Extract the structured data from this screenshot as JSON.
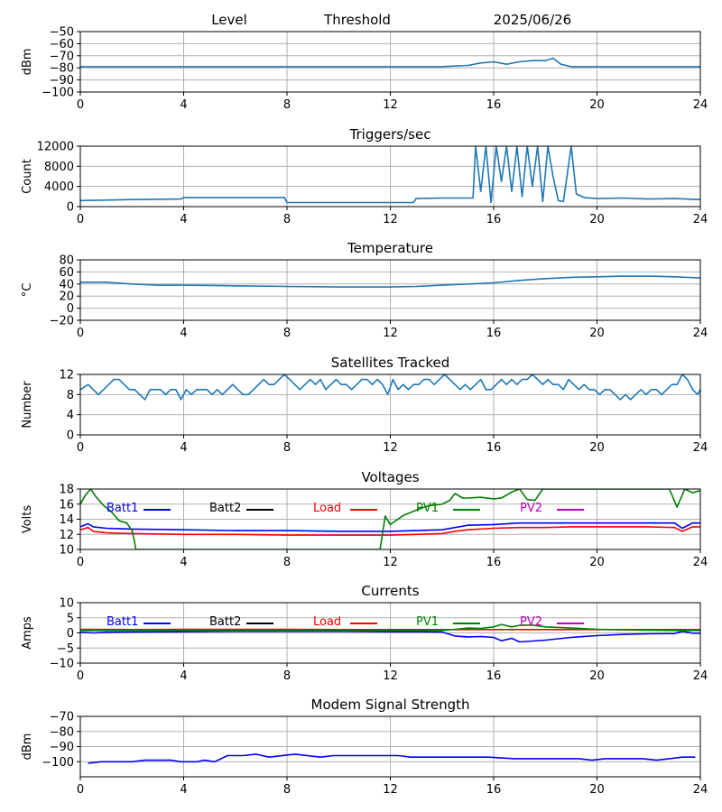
{
  "header": {
    "left": "Level",
    "middle": "Threshold",
    "date": "2025/06/26"
  },
  "colors": {
    "series_default": "#1f77b4",
    "batt1": "#0000ff",
    "batt2": "#000000",
    "load": "#ff0000",
    "pv1": "#008000",
    "pv2": "#bf00bf",
    "grid": "#b0b0b0"
  },
  "chart_data": [
    {
      "id": "level",
      "type": "line",
      "title": "",
      "ylabel": "dBm",
      "xlim": [
        0,
        24
      ],
      "ylim": [
        -100,
        -50
      ],
      "xticks": [
        0,
        4,
        8,
        12,
        16,
        20,
        24
      ],
      "yticks": [
        -100,
        -90,
        -80,
        -70,
        -60,
        -50
      ],
      "grid": true,
      "series": [
        {
          "x": [
            0,
            2,
            4,
            6,
            8,
            10,
            12,
            13,
            14,
            15,
            15.5,
            16,
            16.5,
            17,
            17.5,
            18,
            18.3,
            18.6,
            19,
            20,
            22,
            24
          ],
          "y": [
            -79,
            -79,
            -79,
            -79,
            -79,
            -79,
            -79,
            -79,
            -79,
            -78,
            -76,
            -75,
            -77,
            -75,
            -74,
            -74,
            -72,
            -77,
            -79,
            -79,
            -79,
            -79
          ]
        }
      ]
    },
    {
      "id": "triggers",
      "type": "line",
      "title": "Triggers/sec",
      "ylabel": "Count",
      "xlim": [
        0,
        24
      ],
      "ylim": [
        0,
        12000
      ],
      "xticks": [
        0,
        4,
        8,
        12,
        16,
        20,
        24
      ],
      "yticks": [
        0,
        4000,
        8000,
        12000
      ],
      "grid": true,
      "series": [
        {
          "x": [
            0,
            2,
            3.9,
            4,
            6,
            7.9,
            8,
            10,
            12,
            12.9,
            13,
            14,
            15.2,
            15.3,
            15.5,
            15.7,
            15.9,
            16.1,
            16.3,
            16.5,
            16.7,
            16.9,
            17.1,
            17.3,
            17.5,
            17.7,
            17.9,
            18.1,
            18.3,
            18.5,
            18.7,
            19,
            19.2,
            19.5,
            20,
            21,
            22,
            23,
            24
          ],
          "y": [
            1200,
            1400,
            1500,
            1800,
            1800,
            1800,
            800,
            800,
            800,
            800,
            1600,
            1700,
            1700,
            12000,
            3000,
            12000,
            800,
            12000,
            5000,
            12000,
            3000,
            12000,
            2000,
            12000,
            4000,
            12000,
            1000,
            12000,
            6000,
            1200,
            1000,
            12000,
            2500,
            1800,
            1600,
            1700,
            1500,
            1600,
            1400
          ]
        }
      ]
    },
    {
      "id": "temperature",
      "type": "line",
      "title": "Temperature",
      "ylabel": "°C",
      "xlim": [
        0,
        24
      ],
      "ylim": [
        -20,
        80
      ],
      "xticks": [
        0,
        4,
        8,
        12,
        16,
        20,
        24
      ],
      "yticks": [
        -20,
        0,
        20,
        40,
        60,
        80
      ],
      "grid": true,
      "series": [
        {
          "x": [
            0,
            1,
            2,
            3,
            4,
            6,
            8,
            10,
            12,
            13,
            14,
            15,
            16,
            17,
            18,
            19,
            20,
            21,
            22,
            23,
            24
          ],
          "y": [
            43,
            43,
            40,
            38,
            38,
            37,
            36,
            35,
            35,
            36,
            38,
            40,
            42,
            46,
            49,
            51,
            52,
            53,
            53,
            52,
            50
          ]
        }
      ]
    },
    {
      "id": "satellites",
      "type": "line",
      "title": "Satellites Tracked",
      "ylabel": "Number",
      "xlim": [
        0,
        24
      ],
      "ylim": [
        0,
        12
      ],
      "xticks": [
        0,
        4,
        8,
        12,
        16,
        20,
        24
      ],
      "yticks": [
        0,
        4,
        8,
        12
      ],
      "grid": true,
      "series": [
        {
          "x": [
            0,
            0.3,
            0.5,
            0.7,
            0.9,
            1.1,
            1.3,
            1.5,
            1.7,
            1.9,
            2.1,
            2.3,
            2.5,
            2.7,
            2.9,
            3.1,
            3.3,
            3.5,
            3.7,
            3.9,
            4.1,
            4.3,
            4.5,
            4.7,
            4.9,
            5.1,
            5.3,
            5.5,
            5.7,
            5.9,
            6.1,
            6.3,
            6.5,
            6.7,
            6.9,
            7.1,
            7.3,
            7.5,
            7.7,
            7.9,
            8.1,
            8.3,
            8.5,
            8.7,
            8.9,
            9.1,
            9.3,
            9.5,
            9.7,
            9.9,
            10.1,
            10.3,
            10.5,
            10.7,
            10.9,
            11.1,
            11.3,
            11.5,
            11.7,
            11.9,
            12.1,
            12.3,
            12.5,
            12.7,
            12.9,
            13.1,
            13.3,
            13.5,
            13.7,
            13.9,
            14.1,
            14.3,
            14.5,
            14.7,
            14.9,
            15.1,
            15.3,
            15.5,
            15.7,
            15.9,
            16.1,
            16.3,
            16.5,
            16.7,
            16.9,
            17.1,
            17.3,
            17.5,
            17.7,
            17.9,
            18.1,
            18.3,
            18.5,
            18.7,
            18.9,
            19.1,
            19.3,
            19.5,
            19.7,
            19.9,
            20.1,
            20.3,
            20.5,
            20.7,
            20.9,
            21.1,
            21.3,
            21.5,
            21.7,
            21.9,
            22.1,
            22.3,
            22.5,
            22.7,
            22.9,
            23.1,
            23.3,
            23.5,
            23.7,
            23.9,
            24
          ],
          "y": [
            9,
            10,
            9,
            8,
            9,
            10,
            11,
            11,
            10,
            9,
            9,
            8,
            7,
            9,
            9,
            9,
            8,
            9,
            9,
            7,
            9,
            8,
            9,
            9,
            9,
            8,
            9,
            8,
            9,
            10,
            9,
            8,
            8,
            9,
            10,
            11,
            10,
            10,
            11,
            12,
            11,
            10,
            9,
            10,
            11,
            10,
            11,
            9,
            10,
            11,
            10,
            10,
            9,
            10,
            11,
            11,
            10,
            11,
            10,
            8,
            11,
            9,
            10,
            9,
            10,
            10,
            11,
            11,
            10,
            11,
            12,
            11,
            10,
            9,
            10,
            9,
            10,
            11,
            9,
            9,
            10,
            11,
            10,
            11,
            10,
            11,
            11,
            12,
            11,
            10,
            11,
            10,
            10,
            9,
            11,
            10,
            9,
            10,
            9,
            9,
            8,
            9,
            9,
            8,
            7,
            8,
            7,
            8,
            9,
            8,
            9,
            9,
            8,
            9,
            10,
            10,
            12,
            11,
            9,
            8,
            9
          ]
        }
      ]
    },
    {
      "id": "voltages",
      "type": "line",
      "title": "Voltages",
      "ylabel": "Volts",
      "xlim": [
        0,
        24
      ],
      "ylim": [
        10,
        18
      ],
      "xticks": [
        0,
        4,
        8,
        12,
        16,
        20,
        24
      ],
      "yticks": [
        10,
        12,
        14,
        16,
        18
      ],
      "grid": true,
      "legend": "top",
      "series": [
        {
          "name": "Batt1",
          "color": "#0000ff",
          "x": [
            0,
            0.3,
            0.5,
            1,
            2,
            4,
            6,
            8,
            10,
            12,
            13,
            14,
            14.5,
            15,
            16,
            17,
            18,
            19,
            20,
            21,
            22,
            23,
            23.3,
            23.7,
            24
          ],
          "y": [
            13.0,
            13.4,
            13.0,
            12.8,
            12.7,
            12.6,
            12.5,
            12.5,
            12.4,
            12.4,
            12.5,
            12.6,
            12.9,
            13.2,
            13.3,
            13.5,
            13.5,
            13.5,
            13.5,
            13.5,
            13.5,
            13.5,
            12.8,
            13.5,
            13.5
          ]
        },
        {
          "name": "Batt2",
          "color": "#000000",
          "x": [],
          "y": []
        },
        {
          "name": "Load",
          "color": "#ff0000",
          "x": [
            0,
            0.3,
            0.5,
            1,
            2,
            4,
            6,
            8,
            10,
            12,
            13,
            14,
            14.5,
            15,
            16,
            17,
            18,
            19,
            20,
            21,
            22,
            23,
            23.3,
            23.7,
            24
          ],
          "y": [
            12.6,
            12.9,
            12.4,
            12.2,
            12.1,
            12.0,
            12.0,
            11.9,
            11.9,
            11.9,
            12.0,
            12.1,
            12.4,
            12.6,
            12.8,
            12.9,
            12.9,
            13.0,
            13.0,
            13.0,
            13.0,
            12.9,
            12.4,
            13.0,
            13.0
          ]
        },
        {
          "name": "PV1",
          "color": "#008000",
          "x": [
            0,
            0.2,
            0.4,
            0.6,
            0.9,
            1.2,
            1.5,
            1.8,
            2.0,
            2.1,
            2.15,
            11.6,
            11.8,
            12.0,
            12.5,
            13.0,
            13.5,
            14.0,
            14.3,
            14.5,
            14.8,
            15.0,
            15.5,
            16.0,
            16.3,
            16.7,
            17.0,
            17.3,
            17.6,
            17.9,
            18.2,
            22.8,
            23.1,
            23.4,
            23.7,
            24
          ],
          "y": [
            16.0,
            17.2,
            18.0,
            17.0,
            15.8,
            15.0,
            13.8,
            13.5,
            12.5,
            11.0,
            10.0,
            10.0,
            14.4,
            13.3,
            14.5,
            15.2,
            15.8,
            16.0,
            16.5,
            17.4,
            16.8,
            16.8,
            16.9,
            16.7,
            16.8,
            17.6,
            18.0,
            16.6,
            16.5,
            18.0,
            18.0,
            18.0,
            15.6,
            18.0,
            17.5,
            17.8
          ]
        },
        {
          "name": "PV2",
          "color": "#bf00bf",
          "x": [],
          "y": []
        }
      ]
    },
    {
      "id": "currents",
      "type": "line",
      "title": "Currents",
      "ylabel": "Amps",
      "xlim": [
        0,
        24
      ],
      "ylim": [
        -10,
        10
      ],
      "xticks": [
        0,
        4,
        8,
        12,
        16,
        20,
        24
      ],
      "yticks": [
        -10,
        -5,
        0,
        5,
        10
      ],
      "grid": true,
      "legend": "top",
      "series": [
        {
          "name": "Batt1",
          "color": "#0000ff",
          "x": [
            0,
            0.5,
            1,
            2,
            4,
            6,
            8,
            10,
            12,
            13,
            14,
            14.5,
            15,
            15.5,
            16,
            16.3,
            16.7,
            17,
            17.5,
            18,
            19,
            20,
            21,
            22,
            23,
            23.3,
            23.7,
            24
          ],
          "y": [
            0.2,
            0.0,
            0.2,
            0.3,
            0.4,
            0.5,
            0.5,
            0.5,
            0.4,
            0.4,
            0.3,
            -1.0,
            -1.3,
            -1.2,
            -1.5,
            -2.6,
            -1.8,
            -3.0,
            -2.7,
            -2.4,
            -1.5,
            -0.9,
            -0.5,
            -0.3,
            -0.2,
            0.5,
            -0.1,
            -0.1
          ]
        },
        {
          "name": "Batt2",
          "color": "#000000",
          "x": [],
          "y": []
        },
        {
          "name": "Load",
          "color": "#ff0000",
          "x": [
            0,
            2,
            4,
            6,
            8,
            10,
            12,
            14,
            16,
            18,
            20,
            22,
            24
          ],
          "y": [
            1.2,
            1.1,
            1.2,
            1.2,
            1.2,
            1.1,
            1.1,
            1.1,
            1.1,
            1.1,
            1.1,
            1.1,
            1.1
          ]
        },
        {
          "name": "PV1",
          "color": "#008000",
          "x": [
            0,
            2,
            4,
            6,
            8,
            10,
            12,
            13,
            14,
            14.5,
            15,
            15.5,
            16,
            16.3,
            16.7,
            17,
            17.5,
            18,
            19,
            20,
            21,
            22,
            23,
            24
          ],
          "y": [
            0.8,
            0.8,
            0.8,
            0.8,
            0.8,
            0.8,
            0.8,
            0.8,
            0.8,
            1.2,
            1.6,
            1.5,
            2.0,
            2.8,
            2.0,
            2.5,
            2.6,
            2.0,
            1.6,
            1.2,
            1.0,
            0.9,
            0.8,
            0.8
          ]
        },
        {
          "name": "PV2",
          "color": "#bf00bf",
          "x": [],
          "y": []
        }
      ]
    },
    {
      "id": "modem",
      "type": "line",
      "title": "Modem Signal Strength",
      "ylabel": "dBm",
      "xlim": [
        0,
        24
      ],
      "ylim": [
        -110,
        -70
      ],
      "xticks": [
        0,
        4,
        8,
        12,
        16,
        20,
        24
      ],
      "yticks": [
        -100,
        -90,
        -80,
        -70
      ],
      "grid": true,
      "series": [
        {
          "color": "#0000ff",
          "x": [
            0.3,
            0.8,
            2.0,
            2.5,
            3.5,
            3.9,
            4.5,
            4.8,
            5.2,
            5.7,
            6.3,
            6.8,
            7.3,
            8.3,
            9.3,
            9.8,
            12.3,
            12.8,
            15.8,
            16.8,
            19.3,
            19.8,
            20.3,
            21.8,
            22.3,
            22.8,
            23.3,
            23.8
          ],
          "y": [
            -101,
            -100,
            -100,
            -99,
            -99,
            -100,
            -100,
            -99,
            -100,
            -96,
            -96,
            -95,
            -97,
            -95,
            -97,
            -96,
            -96,
            -97,
            -97,
            -98,
            -98,
            -99,
            -98,
            -98,
            -99,
            -98,
            -97,
            -97
          ]
        }
      ]
    }
  ]
}
